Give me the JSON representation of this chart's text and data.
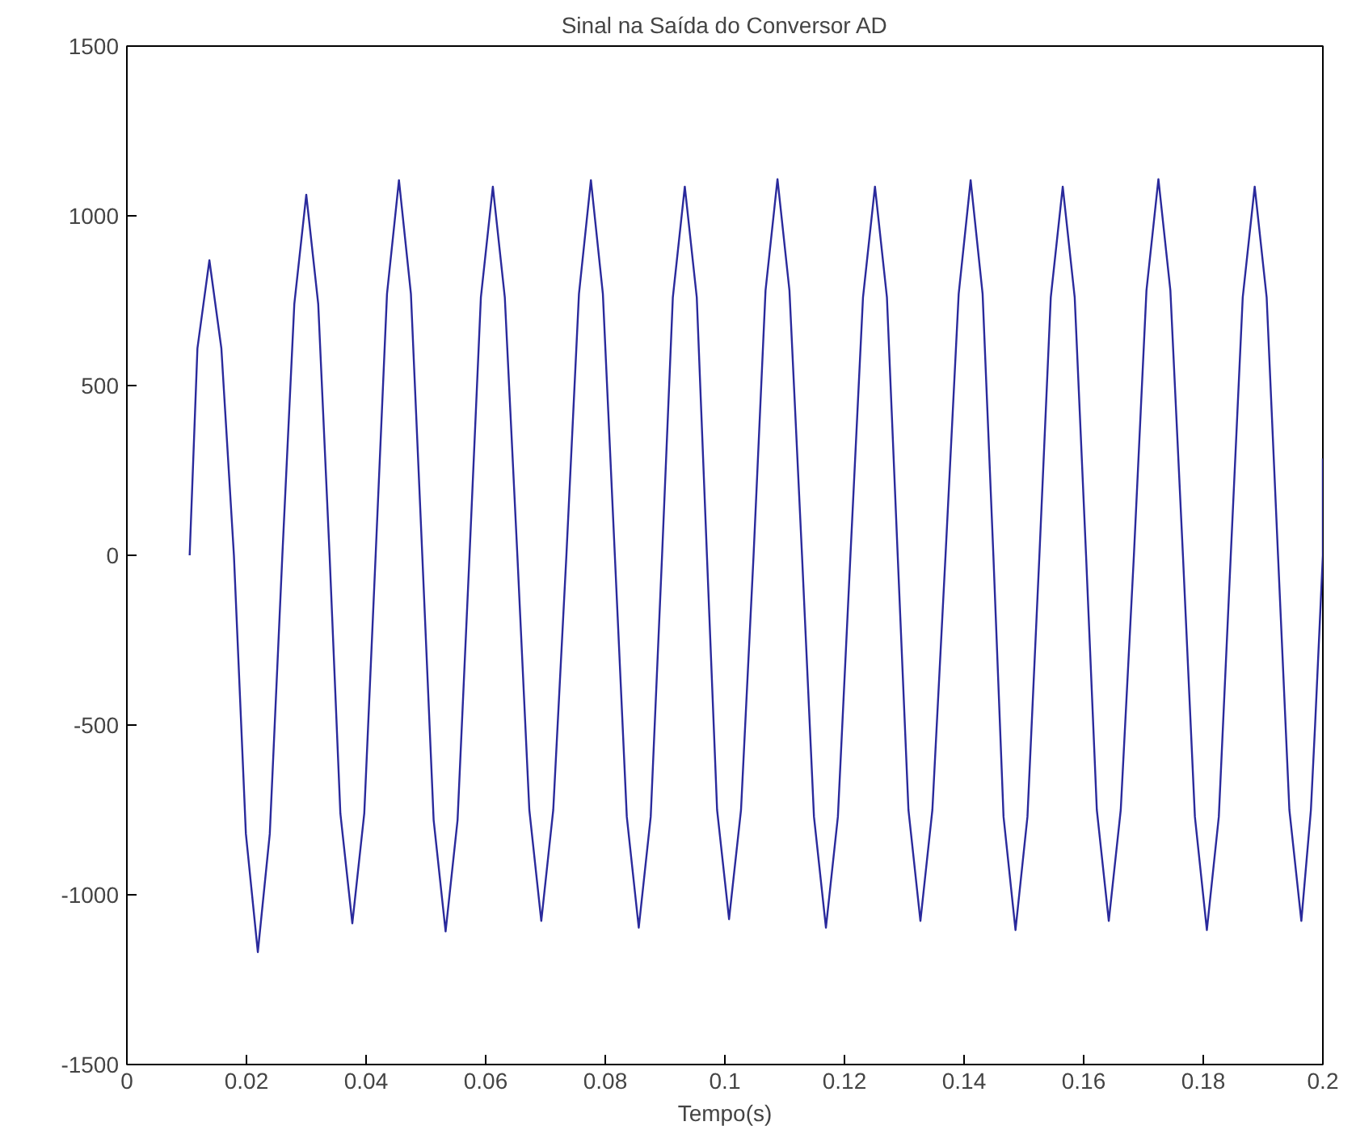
{
  "chart_data": {
    "type": "line",
    "title": "Sinal na Saída do Conversor AD",
    "xlabel": "Tempo(s)",
    "x": [
      0.0105,
      0.0118,
      0.0138,
      0.0158,
      0.0179,
      0.0199,
      0.0219,
      0.0239,
      0.026,
      0.028,
      0.03,
      0.032,
      0.0339,
      0.0357,
      0.0377,
      0.0397,
      0.0416,
      0.0435,
      0.0455,
      0.0475,
      0.0494,
      0.0513,
      0.0533,
      0.0553,
      0.0573,
      0.0592,
      0.0612,
      0.0632,
      0.0653,
      0.0673,
      0.0693,
      0.0713,
      0.0735,
      0.0756,
      0.0776,
      0.0796,
      0.0816,
      0.0836,
      0.0856,
      0.0876,
      0.0895,
      0.0913,
      0.0933,
      0.0953,
      0.097,
      0.0987,
      0.1007,
      0.1027,
      0.1048,
      0.1068,
      0.1088,
      0.1108,
      0.1129,
      0.1149,
      0.1169,
      0.1189,
      0.121,
      0.1231,
      0.1251,
      0.1271,
      0.1289,
      0.1307,
      0.1327,
      0.1347,
      0.1369,
      0.1391,
      0.1411,
      0.1431,
      0.1449,
      0.1466,
      0.1486,
      0.1506,
      0.1526,
      0.1545,
      0.1565,
      0.1585,
      0.1604,
      0.1622,
      0.1642,
      0.1662,
      0.1684,
      0.1705,
      0.1725,
      0.1745,
      0.1766,
      0.1786,
      0.1806,
      0.1826,
      0.1846,
      0.1866,
      0.1886,
      0.1906,
      0.1925,
      0.1944,
      0.1964,
      0.198,
      0.1987,
      0.2,
      0.2
    ],
    "values": [
      0,
      610,
      869,
      610,
      0,
      -820,
      -1169,
      -820,
      0,
      740,
      1062,
      740,
      0,
      -760,
      -1084,
      -760,
      0,
      770,
      1105,
      770,
      0,
      -780,
      -1108,
      -780,
      0,
      760,
      1086,
      760,
      0,
      -750,
      -1077,
      -750,
      0,
      770,
      1105,
      770,
      0,
      -770,
      -1097,
      -770,
      0,
      760,
      1086,
      760,
      0,
      -750,
      -1072,
      -750,
      0,
      780,
      1108,
      780,
      0,
      -770,
      -1097,
      -770,
      0,
      760,
      1086,
      760,
      0,
      -750,
      -1077,
      -750,
      0,
      770,
      1105,
      770,
      0,
      -770,
      -1104,
      -770,
      0,
      760,
      1086,
      760,
      0,
      -750,
      -1077,
      -750,
      0,
      780,
      1108,
      780,
      0,
      -770,
      -1104,
      -770,
      0,
      760,
      1086,
      760,
      0,
      -750,
      -1077,
      -750,
      -500,
      0,
      285
    ],
    "color": "#2a2a9c",
    "xlim": [
      0,
      0.2
    ],
    "xticks": [
      0,
      0.02,
      0.04,
      0.06,
      0.08,
      0.1,
      0.12,
      0.14,
      0.16,
      0.18,
      0.2
    ],
    "ylim": [
      -1500,
      1500
    ],
    "yticks": [
      -1500,
      -1000,
      -500,
      0,
      500,
      1000,
      1500
    ],
    "grid": false
  }
}
